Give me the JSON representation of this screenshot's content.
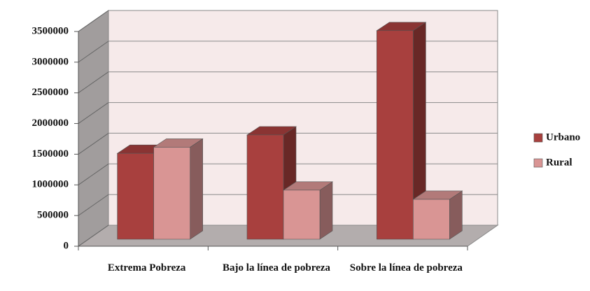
{
  "chart_data": {
    "type": "bar3d",
    "categories": [
      "Extrema Pobreza",
      "Bajo la línea de pobreza",
      "Sobre la línea de pobreza"
    ],
    "series": [
      {
        "name": "Urbano",
        "color": "#a8403e",
        "values": [
          1400000,
          1700000,
          3400000
        ]
      },
      {
        "name": "Rural",
        "color": "#d99594",
        "values": [
          1500000,
          800000,
          650000
        ]
      }
    ],
    "ylim": [
      0,
      3500000
    ],
    "yticks": [
      0,
      500000,
      1000000,
      1500000,
      2000000,
      2500000,
      3000000,
      3500000
    ],
    "grid": true,
    "legend": "right"
  }
}
